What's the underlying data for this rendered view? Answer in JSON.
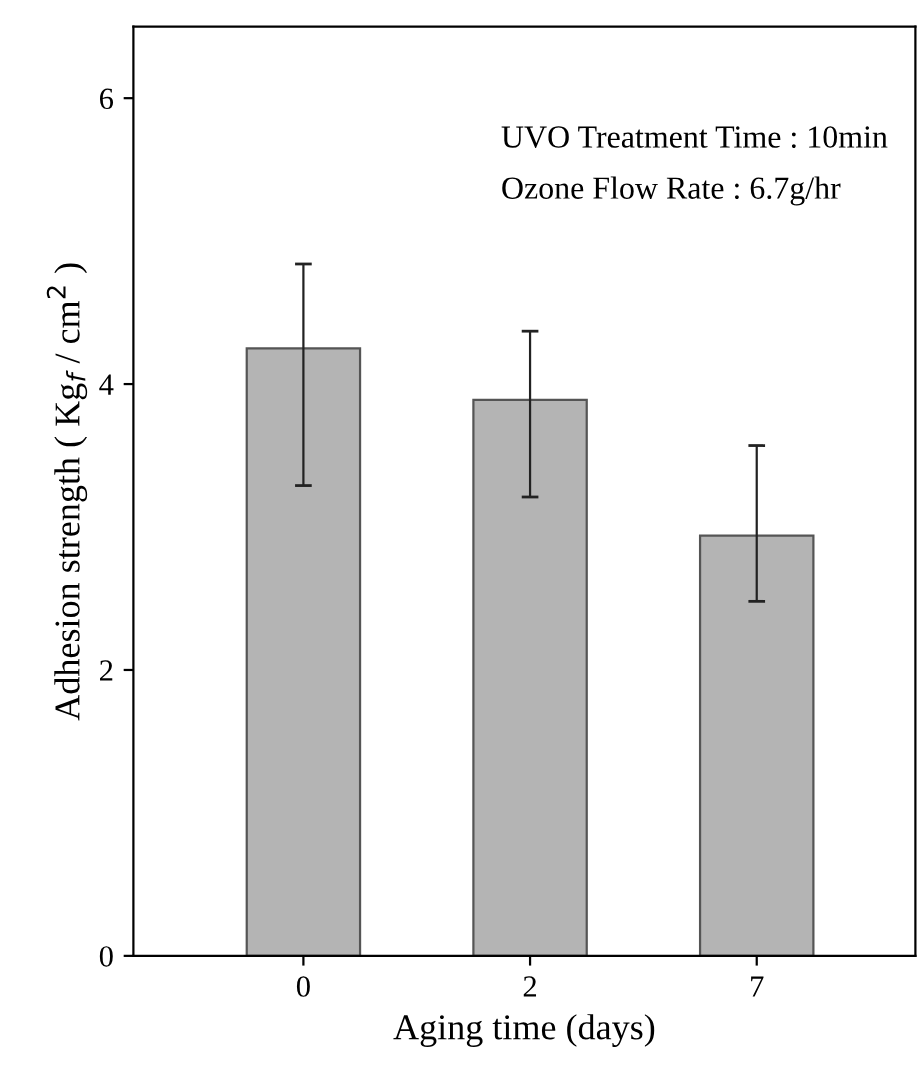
{
  "chart_data": {
    "type": "bar",
    "xlabel": "Aging time (days)",
    "ylabel": "Adhesion strength ( Kg$_{f}$ / cm$^{2}$ )",
    "categories": [
      "0",
      "2",
      "7"
    ],
    "values": [
      4.25,
      3.89,
      2.94
    ],
    "errors": [
      [
        3.29,
        4.84
      ],
      [
        3.21,
        4.37
      ],
      [
        2.48,
        3.57
      ]
    ],
    "color": "#b4b4b4",
    "ylim": [
      0,
      6.5
    ],
    "yticks": [
      0,
      2,
      4,
      6
    ],
    "annotations": [
      "UVO Treatment Time : 10min",
      "Ozone Flow Rate : 6.7g/hr"
    ]
  }
}
